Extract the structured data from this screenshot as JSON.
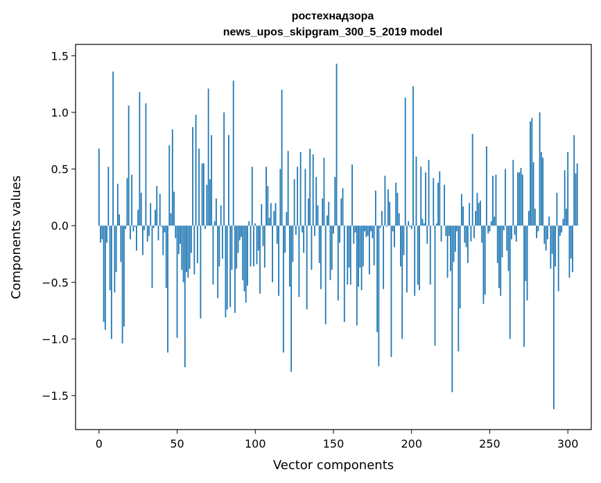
{
  "chart_data": {
    "type": "bar",
    "title": "ростехнадзора",
    "subtitle": "news_upos_skipgram_300_5_2019 model",
    "xlabel": "Vector components",
    "ylabel": "Components values",
    "xlim": [
      -15,
      315
    ],
    "ylim": [
      -1.8,
      1.6
    ],
    "x_ticks": [
      0,
      50,
      100,
      150,
      200,
      250,
      300
    ],
    "x_tick_labels": [
      "0",
      "50",
      "100",
      "150",
      "200",
      "250",
      "300"
    ],
    "y_ticks": [
      -1.5,
      -1.0,
      -0.5,
      0.0,
      0.5,
      1.0,
      1.5
    ],
    "y_tick_labels": [
      "−1.5",
      "−1.0",
      "−0.5",
      "0.0",
      "0.5",
      "1.0",
      "1.5"
    ],
    "grid": false,
    "bar_color": "#1f77b4",
    "series": [
      {
        "values": [
          0.68,
          -0.15,
          -0.12,
          -0.85,
          -0.92,
          -0.15,
          0.52,
          -0.57,
          -1.0,
          1.36,
          -0.59,
          -0.41,
          0.37,
          0.1,
          -0.32,
          -1.04,
          -0.89,
          -0.03,
          0.42,
          1.06,
          -0.12,
          0.45,
          -0.05,
          -0.01,
          -0.22,
          0.14,
          1.18,
          0.29,
          -0.26,
          -0.04,
          1.08,
          -0.14,
          -0.09,
          0.2,
          -0.55,
          -0.02,
          0.14,
          0.35,
          -0.13,
          0.28,
          -0.01,
          -0.26,
          -0.06,
          -0.55,
          -1.12,
          0.71,
          0.11,
          0.85,
          0.3,
          -0.11,
          -0.99,
          -0.25,
          -0.16,
          -0.39,
          -0.5,
          -1.25,
          -0.41,
          -0.46,
          -0.38,
          -0.24,
          0.87,
          -0.43,
          0.98,
          -0.33,
          0.68,
          -0.82,
          0.55,
          0.55,
          -0.03,
          0.36,
          1.21,
          0.41,
          0.8,
          -0.52,
          0.04,
          0.24,
          -0.64,
          -0.36,
          0.18,
          -0.29,
          1.0,
          -0.81,
          -0.74,
          0.8,
          -0.72,
          -0.39,
          1.28,
          -0.77,
          -0.38,
          -0.24,
          -0.13,
          -0.1,
          -0.48,
          -0.58,
          -0.68,
          -0.53,
          0.04,
          -0.36,
          0.52,
          -0.36,
          0.02,
          -0.34,
          -0.22,
          -0.6,
          0.19,
          -0.18,
          -0.37,
          0.52,
          0.35,
          0.07,
          0.2,
          -0.5,
          0.13,
          0.2,
          -0.16,
          -0.62,
          0.5,
          1.2,
          -1.12,
          -0.24,
          0.12,
          0.66,
          -0.54,
          -1.29,
          -0.32,
          0.41,
          -0.08,
          0.52,
          -0.63,
          0.65,
          -0.06,
          -0.24,
          0.5,
          -0.74,
          0.24,
          0.68,
          -0.39,
          0.63,
          -0.09,
          0.43,
          0.18,
          -0.33,
          -0.56,
          0.24,
          0.6,
          -0.87,
          0.09,
          0.21,
          -0.48,
          -0.39,
          -0.07,
          0.43,
          1.43,
          -0.66,
          -0.15,
          0.24,
          0.33,
          -0.85,
          0.0,
          -0.52,
          -0.37,
          -0.52,
          0.54,
          -0.16,
          -0.06,
          -0.88,
          -0.54,
          -0.37,
          -0.57,
          -0.36,
          -0.05,
          -0.1,
          -0.09,
          -0.43,
          -0.05,
          -0.11,
          -0.35,
          0.31,
          -0.94,
          -1.24,
          -0.02,
          0.13,
          -0.56,
          0.44,
          -0.01,
          0.32,
          0.21,
          -1.16,
          -0.05,
          -0.19,
          0.38,
          0.29,
          0.11,
          -0.36,
          -1.0,
          -0.26,
          1.13,
          -0.59,
          0.04,
          -0.01,
          -0.03,
          1.23,
          -0.62,
          0.61,
          -0.52,
          -0.57,
          0.52,
          0.06,
          0.02,
          0.47,
          -0.16,
          0.58,
          -0.52,
          0.0,
          0.42,
          -1.06,
          0.02,
          0.38,
          0.48,
          -0.14,
          0.0,
          0.36,
          -0.09,
          -0.46,
          -0.09,
          -0.4,
          -1.47,
          -0.32,
          -0.23,
          -0.05,
          -1.11,
          -0.73,
          0.28,
          0.17,
          -0.15,
          -0.19,
          -0.33,
          0.2,
          -0.14,
          0.81,
          -0.11,
          0.13,
          0.29,
          0.2,
          0.22,
          -0.15,
          -0.69,
          -0.61,
          0.7,
          -0.07,
          -0.05,
          0.04,
          0.44,
          0.08,
          0.45,
          -0.33,
          -0.55,
          -0.62,
          -0.28,
          -0.04,
          0.5,
          -0.22,
          -0.4,
          -1.0,
          -0.12,
          0.58,
          -0.08,
          -0.14,
          0.47,
          0.47,
          0.51,
          0.45,
          -1.07,
          -0.49,
          -0.66,
          0.13,
          0.92,
          0.95,
          0.56,
          0.15,
          -0.11,
          -0.05,
          1.0,
          0.65,
          0.6,
          -0.16,
          -0.22,
          -0.12,
          0.08,
          -0.38,
          -0.25,
          -1.62,
          -0.36,
          0.29,
          -0.58,
          -0.09,
          -0.06,
          0.06,
          0.49,
          0.15,
          0.65,
          -0.46,
          -0.29,
          -0.41,
          0.8,
          0.46,
          0.55
        ],
        "values_note_last_segment": ""
      }
    ]
  }
}
